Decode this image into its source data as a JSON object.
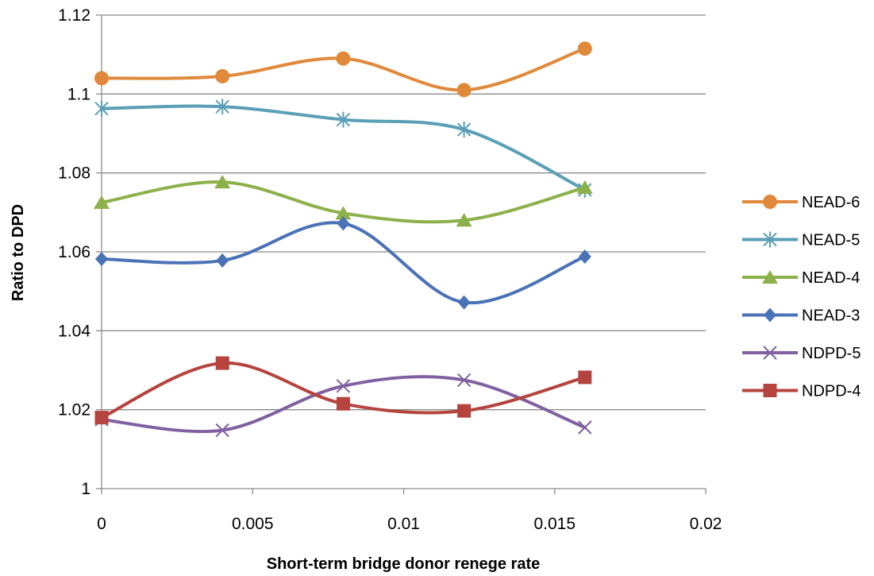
{
  "chart_data": {
    "type": "line",
    "smooth": true,
    "xlabel": "Short-term  bridge donor renege rate",
    "ylabel": "Ratio to DPD",
    "xlim": [
      0,
      0.02
    ],
    "ylim": [
      1,
      1.12
    ],
    "x_ticks": [
      "0",
      "0.005",
      "0.01",
      "0.015",
      "0.02"
    ],
    "y_ticks": [
      "1",
      "1.02",
      "1.04",
      "1.06",
      "1.08",
      "1.1",
      "1.12"
    ],
    "x_tick_values": [
      0,
      0.005,
      0.01,
      0.015,
      0.02
    ],
    "y_tick_values": [
      1,
      1.02,
      1.04,
      1.06,
      1.08,
      1.1,
      1.12
    ],
    "grid": "horizontal",
    "legend_position": "right",
    "x": [
      0,
      0.004,
      0.008,
      0.012,
      0.016
    ],
    "series": [
      {
        "name": "NEAD-6",
        "color": "#E0893B",
        "marker": "circle",
        "values": [
          1.104,
          1.1045,
          1.109,
          1.101,
          1.1115
        ]
      },
      {
        "name": "NEAD-5",
        "color": "#5A9FB6",
        "marker": "asterisk",
        "values": [
          1.0963,
          1.0968,
          1.0935,
          1.091,
          1.0757
        ]
      },
      {
        "name": "NEAD-4",
        "color": "#8CB04A",
        "marker": "triangle",
        "values": [
          1.0725,
          1.0777,
          1.0698,
          1.068,
          1.0763
        ]
      },
      {
        "name": "NEAD-3",
        "color": "#4A72B6",
        "marker": "diamond",
        "values": [
          1.0582,
          1.0578,
          1.0672,
          1.0472,
          1.0588
        ]
      },
      {
        "name": "NDPD-5",
        "color": "#8060A0",
        "marker": "x",
        "values": [
          1.0175,
          1.0148,
          1.026,
          1.0275,
          1.0155
        ]
      },
      {
        "name": "NDPD-4",
        "color": "#B5433E",
        "marker": "square",
        "values": [
          1.018,
          1.0318,
          1.0215,
          1.0197,
          1.0282
        ]
      }
    ]
  }
}
